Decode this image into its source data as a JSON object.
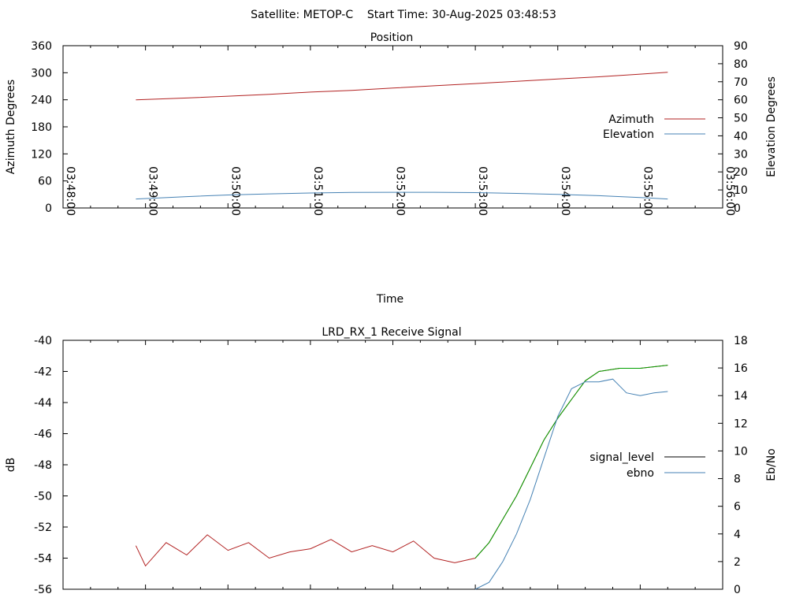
{
  "header": {
    "title": "Satellite: METOP-C    Start Time: 30-Aug-2025 03:48:53"
  },
  "chart_data": [
    {
      "type": "line",
      "title": "Position",
      "xlabel": "Time",
      "ylabel": "Azimuth Degrees",
      "y2label": "Elevation Degrees",
      "x_ticks": [
        "03:48:00",
        "03:49:00",
        "03:50:00",
        "03:51:00",
        "03:52:00",
        "03:53:00",
        "03:54:00",
        "03:55:00",
        "03:56:00"
      ],
      "xlim": [
        "03:48:00",
        "03:56:00"
      ],
      "ylim": [
        0,
        360
      ],
      "y_ticks": [
        "0",
        "60",
        "120",
        "180",
        "240",
        "300",
        "360"
      ],
      "y2lim": [
        0,
        90
      ],
      "y2_ticks": [
        "0",
        "10",
        "20",
        "30",
        "40",
        "50",
        "60",
        "70",
        "80",
        "90"
      ],
      "legend_position": "right",
      "grid": false,
      "series": [
        {
          "name": "Azimuth",
          "axis": "y",
          "color": "#b22222",
          "x": [
            "03:48:53",
            "03:49:30",
            "03:50:00",
            "03:50:30",
            "03:51:00",
            "03:51:30",
            "03:52:00",
            "03:52:30",
            "03:53:00",
            "03:53:30",
            "03:54:00",
            "03:54:30",
            "03:55:00",
            "03:55:20"
          ],
          "values": [
            240,
            244,
            248,
            252,
            257,
            261,
            266,
            271,
            276,
            281,
            286,
            291,
            297,
            301
          ]
        },
        {
          "name": "Elevation",
          "axis": "y2",
          "color": "#4682b4",
          "x": [
            "03:48:53",
            "03:49:30",
            "03:50:00",
            "03:50:30",
            "03:51:00",
            "03:51:30",
            "03:52:00",
            "03:52:30",
            "03:53:00",
            "03:53:30",
            "03:54:00",
            "03:54:30",
            "03:55:00",
            "03:55:20"
          ],
          "values": [
            5,
            6.3,
            7.2,
            7.8,
            8.3,
            8.6,
            8.7,
            8.7,
            8.5,
            8.1,
            7.5,
            6.8,
            5.8,
            5
          ]
        }
      ]
    },
    {
      "type": "line",
      "title": "LRD_RX_1 Receive Signal",
      "ylabel": "dB",
      "y2label": "Eb/No",
      "xlim": [
        "03:48:00",
        "03:56:00"
      ],
      "ylim": [
        -56,
        -40
      ],
      "y_ticks": [
        "-56",
        "-54",
        "-52",
        "-50",
        "-48",
        "-46",
        "-44",
        "-42",
        "-40"
      ],
      "y2lim": [
        0,
        18
      ],
      "y2_ticks": [
        "0",
        "2",
        "4",
        "6",
        "8",
        "10",
        "12",
        "14",
        "16",
        "18"
      ],
      "legend_position": "right",
      "grid": false,
      "series": [
        {
          "name": "signal_level",
          "axis": "y",
          "color": "#b22222",
          "color_after_acquisition": "#00a000",
          "x": [
            "03:48:53",
            "03:49:00",
            "03:49:15",
            "03:49:30",
            "03:49:45",
            "03:50:00",
            "03:50:15",
            "03:50:30",
            "03:50:45",
            "03:51:00",
            "03:51:15",
            "03:51:30",
            "03:51:45",
            "03:52:00",
            "03:52:15",
            "03:52:30",
            "03:52:45",
            "03:53:00",
            "03:53:10",
            "03:53:20",
            "03:53:30",
            "03:53:40",
            "03:53:50",
            "03:54:00",
            "03:54:10",
            "03:54:20",
            "03:54:30",
            "03:54:45",
            "03:55:00",
            "03:55:20"
          ],
          "values": [
            -53.2,
            -54.5,
            -53.0,
            -53.8,
            -52.5,
            -53.5,
            -53.0,
            -54.0,
            -53.6,
            -53.4,
            -52.8,
            -53.6,
            -53.2,
            -53.6,
            -52.9,
            -54.0,
            -54.3,
            -54.0,
            -53.0,
            -51.5,
            -50.0,
            -48.2,
            -46.4,
            -45.0,
            -43.8,
            -42.6,
            -42.0,
            -41.8,
            -41.8,
            -41.6
          ]
        },
        {
          "name": "ebno",
          "axis": "y2",
          "color": "#4682b4",
          "x": [
            "03:53:00",
            "03:53:10",
            "03:53:20",
            "03:53:30",
            "03:53:40",
            "03:53:50",
            "03:54:00",
            "03:54:10",
            "03:54:20",
            "03:54:30",
            "03:54:40",
            "03:54:50",
            "03:55:00",
            "03:55:10",
            "03:55:20"
          ],
          "values": [
            0,
            0.5,
            2.0,
            4.0,
            6.5,
            9.5,
            12.5,
            14.5,
            15.0,
            15.0,
            15.2,
            14.2,
            14.0,
            14.2,
            14.3
          ]
        }
      ]
    }
  ]
}
